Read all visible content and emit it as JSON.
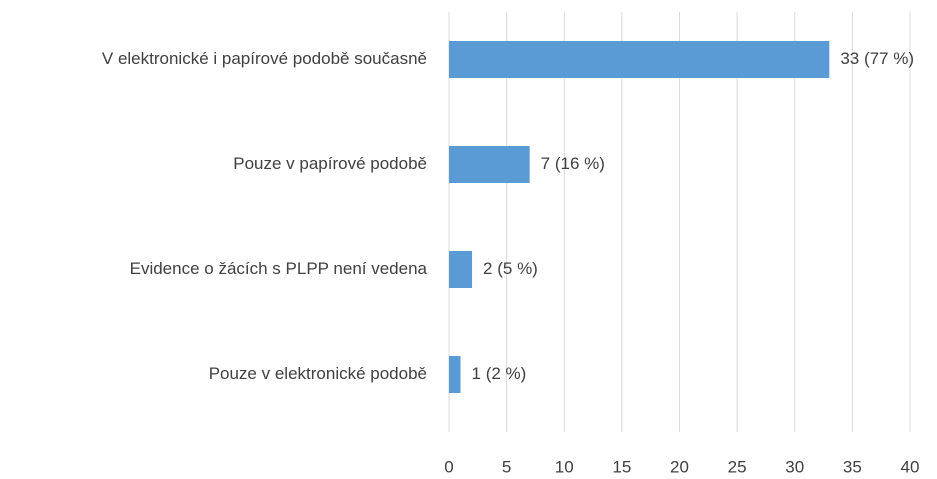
{
  "chart_data": {
    "type": "bar",
    "orientation": "horizontal",
    "categories": [
      "V elektronické i papírové podobě současně",
      "Pouze v papírové podobě",
      "Evidence o žácích s PLPP není vedena",
      "Pouze v elektronické podobě"
    ],
    "values": [
      33,
      7,
      2,
      1
    ],
    "value_labels": [
      "33 (77 %)",
      "7 (16 %)",
      "2 (5 %)",
      "1 (2 %)"
    ],
    "color": "#5b9bd5",
    "xlim": [
      0,
      40
    ],
    "xticks": [
      0,
      5,
      10,
      15,
      20,
      25,
      30,
      35,
      40
    ],
    "grid": true
  }
}
